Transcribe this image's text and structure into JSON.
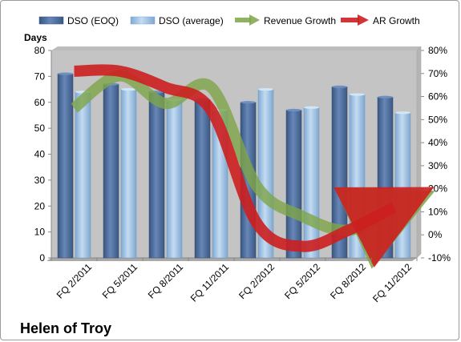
{
  "chart_data": {
    "type": "bar",
    "title": "Helen of Troy",
    "left_axis_label": "Days",
    "categories": [
      "FQ 2/2011",
      "FQ 5/2011",
      "FQ 8/2011",
      "FQ 11/2011",
      "FQ 2/2012",
      "FQ 5/2012",
      "FQ 8/2012",
      "FQ 11/2012"
    ],
    "series": [
      {
        "name": "DSO (EOQ)",
        "kind": "bar",
        "axis": "left",
        "color": "#4f6d9b",
        "values": [
          71,
          67,
          64,
          61,
          60,
          57,
          66,
          62
        ]
      },
      {
        "name": "DSO (average)",
        "kind": "bar",
        "axis": "left",
        "color": "#9cc3e6",
        "values": [
          64,
          65,
          61,
          57,
          65,
          58,
          63,
          56
        ]
      },
      {
        "name": "Revenue Growth",
        "kind": "line",
        "axis": "right",
        "color": "#7ea548",
        "values": [
          0.55,
          0.69,
          0.57,
          0.64,
          0.21,
          0.08,
          0.02,
          0.11
        ]
      },
      {
        "name": "AR Growth",
        "kind": "line",
        "axis": "right",
        "color": "#cc1f1f",
        "values": [
          0.71,
          0.71,
          0.64,
          0.54,
          0.05,
          -0.05,
          0.02,
          0.12
        ]
      }
    ],
    "ylim_left": [
      0,
      80
    ],
    "yticks_left": [
      "0",
      "10",
      "20",
      "30",
      "40",
      "50",
      "60",
      "70",
      "80"
    ],
    "ylim_right": [
      -0.1,
      0.8
    ],
    "yticks_right": [
      "-10%",
      "0%",
      "10%",
      "20%",
      "30%",
      "40%",
      "50%",
      "60%",
      "70%",
      "80%"
    ],
    "grid": false,
    "legend_position": "top"
  }
}
